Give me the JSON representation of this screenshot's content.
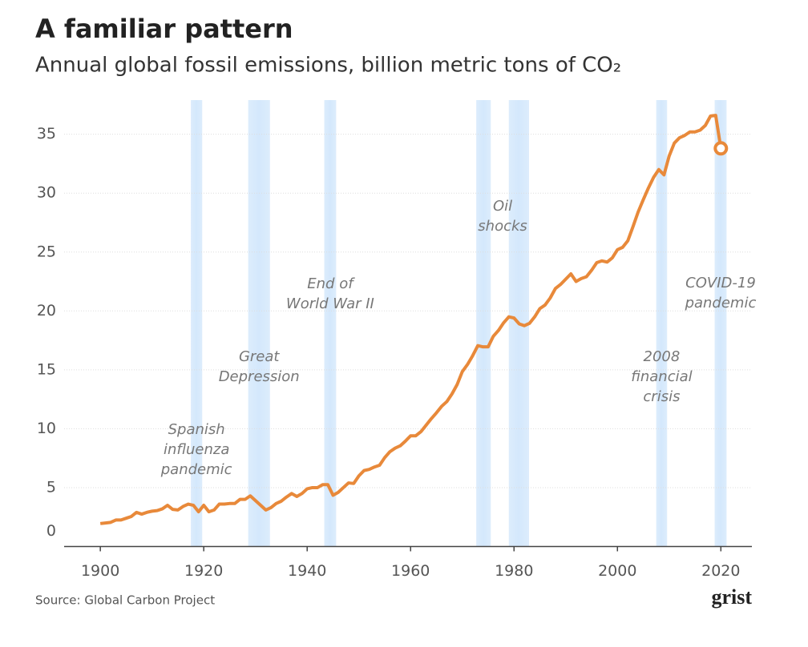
{
  "chart_data": {
    "type": "line",
    "title": "A familiar pattern",
    "subtitle": "Annual global fossil emissions, billion metric tons of CO₂",
    "source": "Source: Global Carbon Project",
    "logo": "grist",
    "x": [
      1900,
      1901,
      1902,
      1903,
      1904,
      1905,
      1906,
      1907,
      1908,
      1909,
      1910,
      1911,
      1912,
      1913,
      1914,
      1915,
      1916,
      1917,
      1918,
      1919,
      1920,
      1921,
      1922,
      1923,
      1924,
      1925,
      1926,
      1927,
      1928,
      1929,
      1930,
      1931,
      1932,
      1933,
      1934,
      1935,
      1936,
      1937,
      1938,
      1939,
      1940,
      1941,
      1942,
      1943,
      1944,
      1945,
      1946,
      1947,
      1948,
      1949,
      1950,
      1951,
      1952,
      1953,
      1954,
      1955,
      1956,
      1957,
      1958,
      1959,
      1960,
      1961,
      1962,
      1963,
      1964,
      1965,
      1966,
      1967,
      1968,
      1969,
      1970,
      1971,
      1972,
      1973,
      1974,
      1975,
      1976,
      1977,
      1978,
      1979,
      1980,
      1981,
      1982,
      1983,
      1984,
      1985,
      1986,
      1987,
      1988,
      1989,
      1990,
      1991,
      1992,
      1993,
      1994,
      1995,
      1996,
      1997,
      1998,
      1999,
      2000,
      2001,
      2002,
      2003,
      2004,
      2005,
      2006,
      2007,
      2008,
      2009,
      2010,
      2011,
      2012,
      2013,
      2014,
      2015,
      2016,
      2017,
      2018,
      2019,
      2020
    ],
    "series": [
      {
        "color": "#e8893a",
        "values": [
          1.95,
          2.0,
          2.05,
          2.25,
          2.25,
          2.4,
          2.55,
          2.9,
          2.75,
          2.9,
          3.0,
          3.05,
          3.2,
          3.5,
          3.15,
          3.1,
          3.4,
          3.6,
          3.5,
          2.95,
          3.5,
          2.95,
          3.1,
          3.6,
          3.6,
          3.65,
          3.65,
          4.0,
          4.0,
          4.3,
          3.9,
          3.5,
          3.1,
          3.3,
          3.65,
          3.85,
          4.2,
          4.5,
          4.25,
          4.5,
          4.9,
          5.0,
          5.0,
          5.25,
          5.25,
          4.35,
          4.6,
          5.0,
          5.4,
          5.35,
          6.0,
          6.45,
          6.55,
          6.75,
          6.9,
          7.55,
          8.05,
          8.35,
          8.55,
          8.95,
          9.4,
          9.4,
          9.75,
          10.3,
          10.85,
          11.35,
          11.9,
          12.3,
          12.95,
          13.75,
          14.85,
          15.45,
          16.2,
          17.05,
          16.95,
          16.95,
          17.85,
          18.35,
          19.0,
          19.5,
          19.4,
          18.9,
          18.75,
          18.95,
          19.5,
          20.2,
          20.5,
          21.1,
          21.9,
          22.25,
          22.7,
          23.15,
          22.5,
          22.75,
          22.9,
          23.45,
          24.1,
          24.25,
          24.15,
          24.5,
          25.2,
          25.4,
          25.95,
          27.15,
          28.4,
          29.45,
          30.45,
          31.35,
          32.0,
          31.55,
          33.15,
          34.25,
          34.7,
          34.9,
          35.2,
          35.2,
          35.35,
          35.75,
          36.55,
          36.6,
          33.8
        ]
      }
    ],
    "events": [
      {
        "label": [
          "Spanish",
          "influenza",
          "pandemic"
        ],
        "periods": [
          [
            1917.5,
            1919.7
          ]
        ]
      },
      {
        "label": [
          "Great",
          "Depression"
        ],
        "periods": [
          [
            1928.6,
            1932.8
          ]
        ]
      },
      {
        "label": [
          "End of",
          "World War II"
        ],
        "periods": [
          [
            1943.3,
            1945.6
          ]
        ]
      },
      {
        "label": [
          "Oil",
          "shocks"
        ],
        "periods": [
          [
            1972.7,
            1975.5
          ],
          [
            1979.0,
            1982.9
          ]
        ]
      },
      {
        "label": [
          "2008",
          "financial",
          "crisis"
        ],
        "periods": [
          [
            2007.5,
            2009.6
          ]
        ]
      },
      {
        "label": [
          "COVID-19",
          "pandemic"
        ],
        "periods": [
          [
            2018.8,
            2021.1
          ]
        ]
      }
    ],
    "band_color": "#d4e8fc",
    "xlim": [
      1893,
      2026
    ],
    "ylim": [
      0,
      37.9
    ],
    "xticks": [
      1900,
      1920,
      1940,
      1960,
      1980,
      2000,
      2020
    ],
    "yticks": [
      0,
      5,
      10,
      15,
      20,
      25,
      30,
      35
    ],
    "grid": true
  }
}
